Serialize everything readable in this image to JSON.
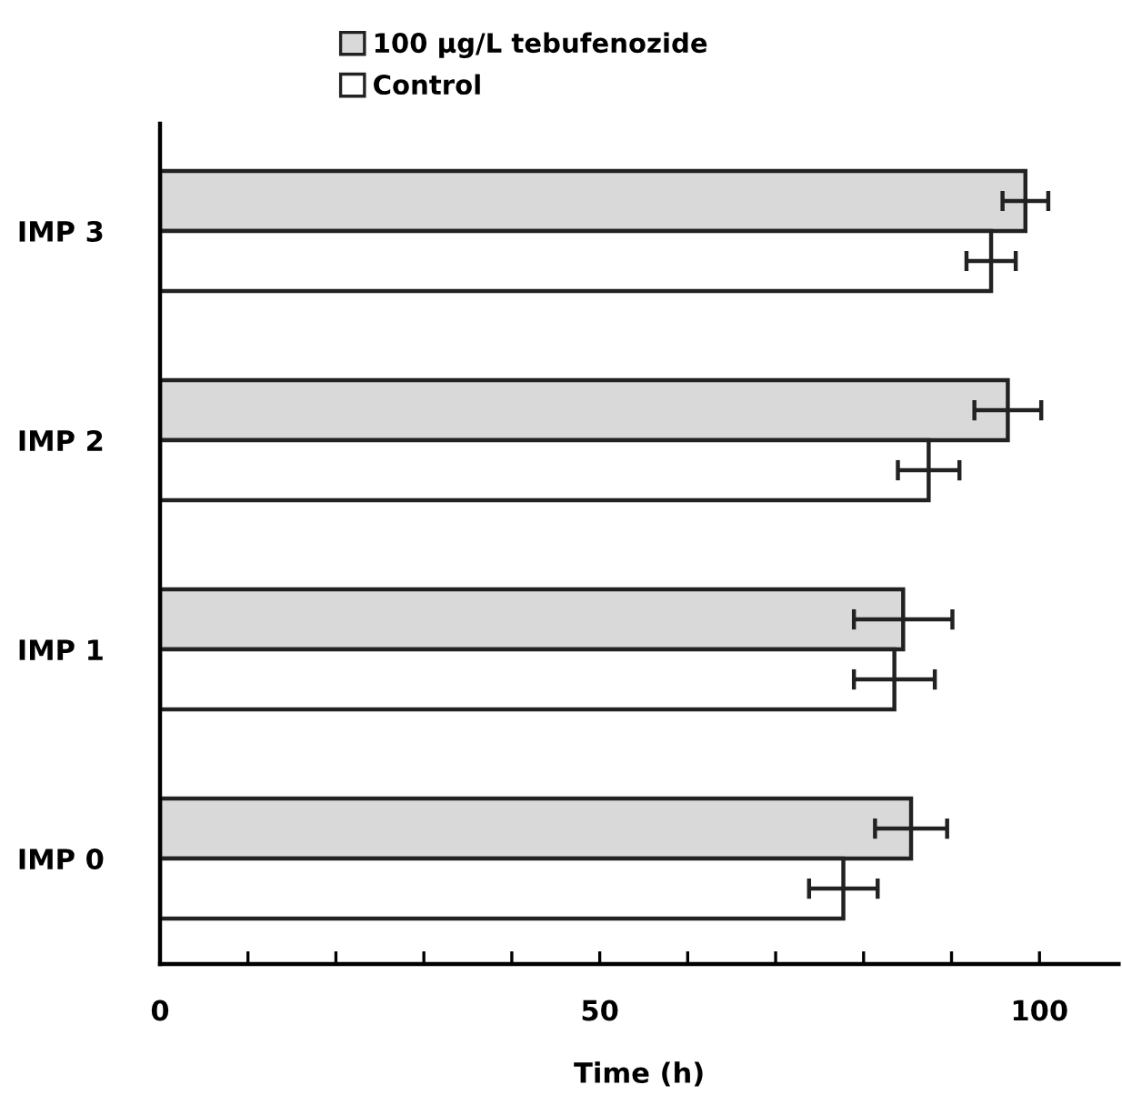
{
  "chart_data": {
    "type": "bar",
    "orientation": "horizontal",
    "xlabel": "Time (h)",
    "categories": [
      "IMP 3",
      "IMP 2",
      "IMP 1",
      "IMP 0"
    ],
    "series": [
      {
        "name": "100 μg/L tebufenozide",
        "color": "#d9d9d9",
        "values": [
          98.4,
          96.4,
          84.5,
          85.4
        ],
        "errors": [
          2.6,
          3.8,
          5.6,
          4.1
        ]
      },
      {
        "name": "Control",
        "color": "#ffffff",
        "values": [
          94.5,
          87.4,
          83.5,
          77.7
        ],
        "errors": [
          2.8,
          3.5,
          4.6,
          3.9
        ]
      }
    ],
    "xlim": [
      0,
      109
    ],
    "xticks": [
      0,
      {
        "value": 10,
        "label": null
      },
      {
        "value": 20,
        "label": null
      },
      {
        "value": 30,
        "label": null
      },
      {
        "value": 40,
        "label": null
      },
      50,
      {
        "value": 60,
        "label": null
      },
      {
        "value": 70,
        "label": null
      },
      {
        "value": 80,
        "label": null
      },
      {
        "value": 90,
        "label": null
      },
      100
    ],
    "legend": "top",
    "grid": false
  }
}
